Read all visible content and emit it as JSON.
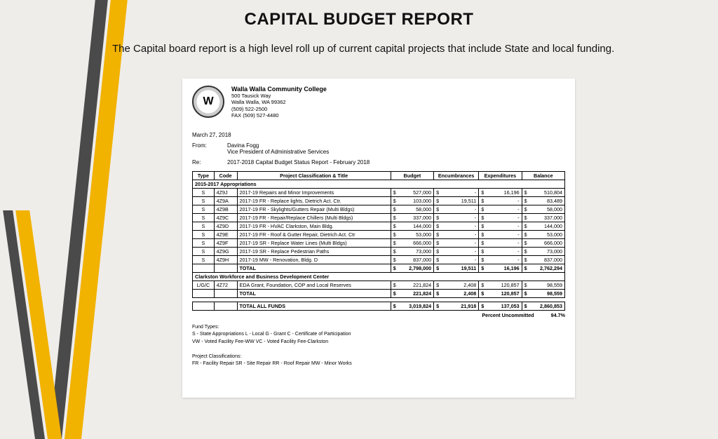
{
  "slide": {
    "title": "CAPITAL BUDGET REPORT",
    "intro": "The Capital board report is a high level roll up of current capital projects that include State and local funding."
  },
  "letterhead": {
    "org": "Walla Walla Community College",
    "addr1": "500 Tausick Way",
    "addr2": "Walla Walla, WA 99362",
    "phone": "(509) 522-2500",
    "fax": "FAX (509) 527-4480",
    "logo_text": "W"
  },
  "memo": {
    "date": "March 27, 2018",
    "from_label": "From:",
    "from_name": "Davina Fogg",
    "from_title": "Vice President of Administrative Services",
    "re_label": "Re:",
    "re_text": "2017-2018 Capital Budget Status Report -  February 2018"
  },
  "table": {
    "headers": {
      "type": "Type",
      "code": "Code",
      "title": "Project Classification & Title",
      "budget": "Budget",
      "enc": "Encumbrances",
      "exp": "Expenditures",
      "bal": "Balance"
    },
    "section1": "2015-2017 Appropriations",
    "rows1": [
      {
        "type": "S",
        "code": "4Z9J",
        "title": "2017-19 Repairs and Minor Improvements",
        "budget": "527,000",
        "enc": "-",
        "exp": "16,196",
        "bal": "510,804"
      },
      {
        "type": "S",
        "code": "4Z9A",
        "title": "2017-19 FR - Replace lights, Dietrich Act. Ctr.",
        "budget": "103,000",
        "enc": "19,511",
        "exp": "-",
        "bal": "83,489"
      },
      {
        "type": "S",
        "code": "4Z9B",
        "title": "2017-19 FR - Skylights/Gutters Repair (Multi Bldgs)",
        "budget": "58,000",
        "enc": "-",
        "exp": "-",
        "bal": "58,000"
      },
      {
        "type": "S",
        "code": "4Z9C",
        "title": "2017-19 FR - Repair/Replace Chillers (Multi Bldgs)",
        "budget": "337,000",
        "enc": "-",
        "exp": "-",
        "bal": "337,000"
      },
      {
        "type": "S",
        "code": "4Z9D",
        "title": "2017-19 FR - HVAC Clarkston, Main Bldg.",
        "budget": "144,000",
        "enc": "-",
        "exp": "-",
        "bal": "144,000"
      },
      {
        "type": "S",
        "code": "4Z9E",
        "title": "2017-19 FR - Roof & Gutter Repair, Dietrich Act. Ctr",
        "budget": "53,000",
        "enc": "-",
        "exp": "-",
        "bal": "53,000"
      },
      {
        "type": "S",
        "code": "4Z9F",
        "title": "2017-19 SR - Replace Water Lines (Multi Bldgs)",
        "budget": "666,000",
        "enc": "-",
        "exp": "-",
        "bal": "666,000"
      },
      {
        "type": "S",
        "code": "4Z9G",
        "title": "2017-19 SR - Replace Pedestrian Paths",
        "budget": "73,000",
        "enc": "-",
        "exp": "-",
        "bal": "73,000"
      },
      {
        "type": "S",
        "code": "4Z9H",
        "title": "2017-19 MW - Renovation, Bldg. D",
        "budget": "837,000",
        "enc": "-",
        "exp": "-",
        "bal": "837,000"
      }
    ],
    "total1": {
      "label": "TOTAL",
      "budget": "2,798,000",
      "enc": "19,511",
      "exp": "16,196",
      "bal": "2,762,294"
    },
    "section2": "Clarkston Workforce and Business Development Center",
    "rows2": [
      {
        "type": "L/G/C",
        "code": "4Z72",
        "title": "EDA Grant, Foundation, COP and Local Reserves",
        "budget": "221,824",
        "enc": "2,408",
        "exp": "120,857",
        "bal": "98,559"
      }
    ],
    "total2": {
      "label": "TOTAL",
      "budget": "221,824",
      "enc": "2,408",
      "exp": "120,857",
      "bal": "98,559"
    },
    "grand": {
      "label": "TOTAL ALL FUNDS",
      "budget": "3,019,824",
      "enc": "21,918",
      "exp": "137,053",
      "bal": "2,860,853"
    },
    "percent_label": "Percent Uncommitted",
    "percent_value": "94.7%"
  },
  "notes": {
    "fund_types_label": "Fund Types:",
    "fund_types": "S - State Appropriations      L - Local      G - Grant      C - Certificate of Participation",
    "fund_types2": "VW - Voted Facility Fee-WW    VC - Voted Facility Fee-Clarkston",
    "proj_class_label": "Project Classifications:",
    "proj_class": "FR - Facility Repair       SR - Site Repair       RR - Roof Repair       MW - Minor Works"
  },
  "colors": {
    "accent_gold": "#f2b200",
    "accent_dark": "#4a4a4a",
    "page_bg": "#efedea",
    "doc_bg": "#ffffff",
    "text": "#000000"
  }
}
